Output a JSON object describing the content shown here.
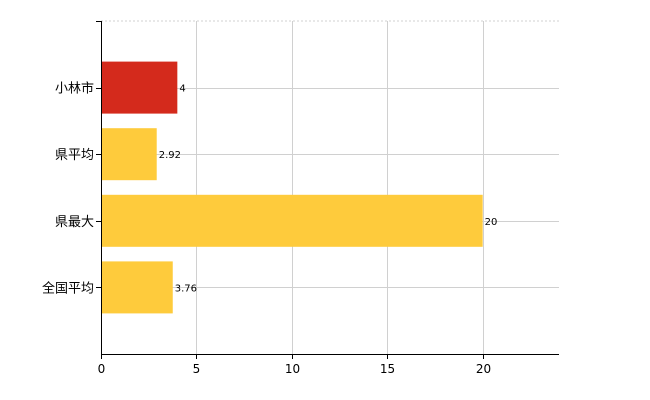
{
  "chart_data": {
    "type": "bar",
    "orientation": "horizontal",
    "categories": [
      "小林市",
      "県平均",
      "県最大",
      "全国平均"
    ],
    "values": [
      4,
      2.92,
      20,
      3.76
    ],
    "data_labels": [
      "4",
      "2.92",
      "20",
      "3.76"
    ],
    "bar_colors": [
      "#d42a1c",
      "#fecb3c",
      "#fecb3c",
      "#fecb3c"
    ],
    "xlim": [
      0,
      24
    ],
    "x_ticks": [
      0,
      5,
      10,
      15,
      20
    ],
    "x_tick_labels": [
      "0",
      "5",
      "10",
      "15",
      "20"
    ],
    "title": "",
    "xlabel": "",
    "ylabel": "",
    "grid": true,
    "legend": "none"
  }
}
